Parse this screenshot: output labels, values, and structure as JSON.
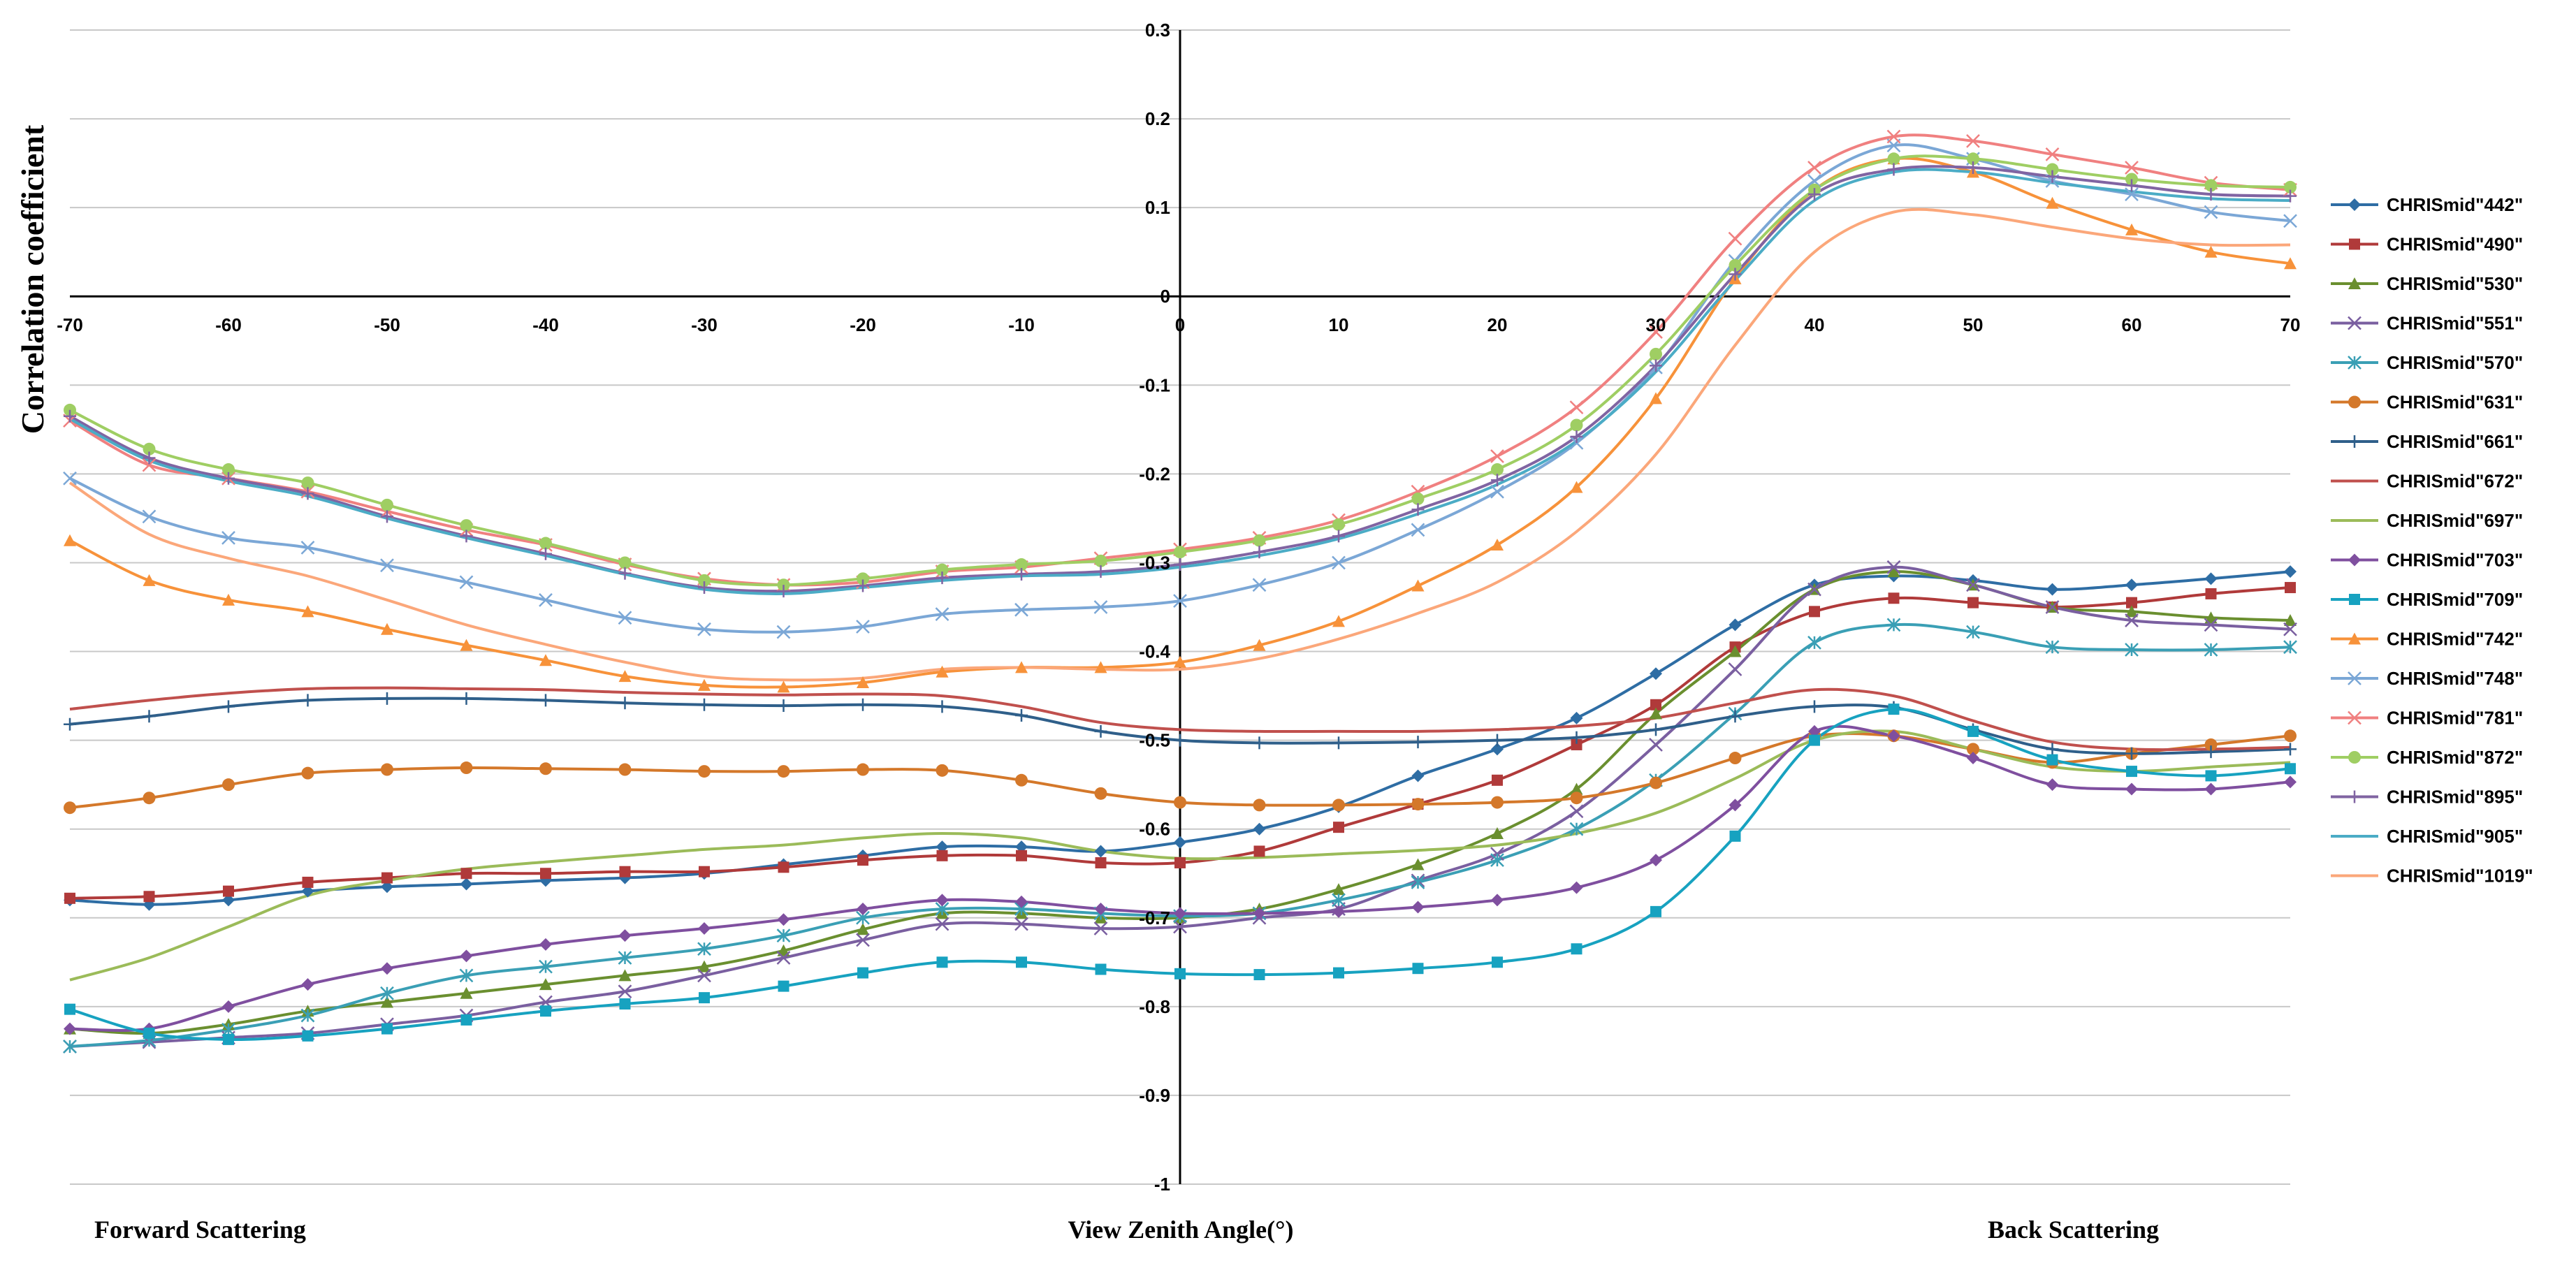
{
  "chart_data": {
    "type": "line",
    "title": "",
    "ylabel": "Correlation coefficient",
    "xlabel": "View Zenith Angle(°)",
    "forward_label": "Forward Scattering",
    "back_label": "Back Scattering",
    "xlim": [
      -70,
      70
    ],
    "ylim": [
      -1,
      0.3
    ],
    "xticks": [
      -70,
      -60,
      -50,
      -40,
      -30,
      -20,
      -10,
      0,
      10,
      20,
      30,
      40,
      50,
      60,
      70
    ],
    "yticks": [
      0.3,
      0.2,
      0.1,
      0,
      -0.1,
      -0.2,
      -0.3,
      -0.4,
      -0.5,
      -0.6,
      -0.7,
      -0.8,
      -0.9,
      -1
    ],
    "ytick_labels": [
      "0.3",
      "0.2",
      "0.1",
      "0",
      "-0.1",
      "-0.2",
      "-0.3",
      "-0.4",
      "-0.5",
      "-0.6",
      "-0.7",
      "-0.8",
      "-0.9",
      "-1"
    ],
    "grid": true,
    "legend_position": "right",
    "x": [
      -70,
      -65,
      -60,
      -55,
      -50,
      -45,
      -40,
      -35,
      -30,
      -25,
      -20,
      -15,
      -10,
      -5,
      0,
      5,
      10,
      15,
      20,
      25,
      30,
      35,
      40,
      45,
      50,
      55,
      60,
      65,
      70
    ],
    "series": [
      {
        "name": "CHRISmid\"442\"",
        "color": "#2e6da4",
        "marker": "diamond",
        "values": [
          -0.68,
          -0.685,
          -0.68,
          -0.67,
          -0.665,
          -0.662,
          -0.658,
          -0.655,
          -0.65,
          -0.64,
          -0.63,
          -0.62,
          -0.62,
          -0.625,
          -0.615,
          -0.6,
          -0.575,
          -0.54,
          -0.51,
          -0.475,
          -0.425,
          -0.37,
          -0.325,
          -0.315,
          -0.32,
          -0.33,
          -0.325,
          -0.318,
          -0.31
        ]
      },
      {
        "name": "CHRISmid\"490\"",
        "color": "#b03a3a",
        "marker": "square",
        "values": [
          -0.678,
          -0.676,
          -0.67,
          -0.66,
          -0.655,
          -0.65,
          -0.65,
          -0.648,
          -0.648,
          -0.643,
          -0.635,
          -0.63,
          -0.63,
          -0.638,
          -0.638,
          -0.625,
          -0.598,
          -0.572,
          -0.545,
          -0.505,
          -0.46,
          -0.395,
          -0.355,
          -0.34,
          -0.345,
          -0.35,
          -0.345,
          -0.335,
          -0.328
        ]
      },
      {
        "name": "CHRISmid\"530\"",
        "color": "#6a8f2f",
        "marker": "triangle",
        "values": [
          -0.825,
          -0.83,
          -0.82,
          -0.805,
          -0.795,
          -0.785,
          -0.775,
          -0.765,
          -0.755,
          -0.737,
          -0.713,
          -0.695,
          -0.695,
          -0.7,
          -0.7,
          -0.69,
          -0.668,
          -0.64,
          -0.605,
          -0.555,
          -0.47,
          -0.4,
          -0.33,
          -0.31,
          -0.325,
          -0.35,
          -0.355,
          -0.362,
          -0.365
        ]
      },
      {
        "name": "CHRISmid\"551\"",
        "color": "#7a5fa0",
        "marker": "x",
        "values": [
          -0.845,
          -0.84,
          -0.835,
          -0.83,
          -0.82,
          -0.81,
          -0.795,
          -0.783,
          -0.765,
          -0.745,
          -0.725,
          -0.707,
          -0.707,
          -0.712,
          -0.71,
          -0.7,
          -0.69,
          -0.658,
          -0.628,
          -0.58,
          -0.505,
          -0.42,
          -0.33,
          -0.305,
          -0.325,
          -0.35,
          -0.365,
          -0.37,
          -0.375
        ]
      },
      {
        "name": "CHRISmid\"570\"",
        "color": "#3a9fb5",
        "marker": "asterisk",
        "values": [
          -0.845,
          -0.838,
          -0.826,
          -0.81,
          -0.785,
          -0.765,
          -0.755,
          -0.745,
          -0.735,
          -0.72,
          -0.7,
          -0.69,
          -0.69,
          -0.695,
          -0.698,
          -0.695,
          -0.68,
          -0.66,
          -0.635,
          -0.6,
          -0.545,
          -0.47,
          -0.39,
          -0.37,
          -0.378,
          -0.395,
          -0.398,
          -0.398,
          -0.395
        ]
      },
      {
        "name": "CHRISmid\"631\"",
        "color": "#d4782a",
        "marker": "circle",
        "values": [
          -0.576,
          -0.565,
          -0.55,
          -0.537,
          -0.533,
          -0.531,
          -0.532,
          -0.533,
          -0.535,
          -0.535,
          -0.533,
          -0.534,
          -0.545,
          -0.56,
          -0.57,
          -0.573,
          -0.573,
          -0.572,
          -0.57,
          -0.565,
          -0.548,
          -0.52,
          -0.495,
          -0.495,
          -0.51,
          -0.525,
          -0.515,
          -0.505,
          -0.495
        ]
      },
      {
        "name": "CHRISmid\"661\"",
        "color": "#2f5f8a",
        "marker": "plus",
        "values": [
          -0.482,
          -0.473,
          -0.462,
          -0.455,
          -0.453,
          -0.453,
          -0.455,
          -0.458,
          -0.46,
          -0.461,
          -0.46,
          -0.462,
          -0.472,
          -0.49,
          -0.5,
          -0.503,
          -0.503,
          -0.502,
          -0.5,
          -0.497,
          -0.488,
          -0.473,
          -0.462,
          -0.463,
          -0.488,
          -0.51,
          -0.515,
          -0.513,
          -0.51
        ]
      },
      {
        "name": "CHRISmid\"672\"",
        "color": "#c0504d",
        "marker": "none",
        "values": [
          -0.465,
          -0.455,
          -0.447,
          -0.442,
          -0.441,
          -0.442,
          -0.443,
          -0.446,
          -0.448,
          -0.449,
          -0.448,
          -0.45,
          -0.462,
          -0.48,
          -0.488,
          -0.49,
          -0.49,
          -0.49,
          -0.488,
          -0.484,
          -0.475,
          -0.458,
          -0.443,
          -0.45,
          -0.478,
          -0.502,
          -0.51,
          -0.51,
          -0.508
        ]
      },
      {
        "name": "CHRISmid\"697\"",
        "color": "#9bbb59",
        "marker": "none",
        "values": [
          -0.77,
          -0.745,
          -0.71,
          -0.675,
          -0.658,
          -0.645,
          -0.637,
          -0.63,
          -0.623,
          -0.618,
          -0.61,
          -0.605,
          -0.61,
          -0.625,
          -0.633,
          -0.632,
          -0.628,
          -0.624,
          -0.618,
          -0.605,
          -0.582,
          -0.543,
          -0.5,
          -0.49,
          -0.51,
          -0.53,
          -0.535,
          -0.53,
          -0.525
        ]
      },
      {
        "name": "CHRISmid\"703\"",
        "color": "#7f4f9f",
        "marker": "diamond",
        "values": [
          -0.825,
          -0.825,
          -0.8,
          -0.775,
          -0.757,
          -0.743,
          -0.73,
          -0.72,
          -0.712,
          -0.702,
          -0.69,
          -0.68,
          -0.682,
          -0.69,
          -0.695,
          -0.695,
          -0.693,
          -0.688,
          -0.68,
          -0.666,
          -0.635,
          -0.573,
          -0.49,
          -0.495,
          -0.52,
          -0.55,
          -0.555,
          -0.555,
          -0.547
        ]
      },
      {
        "name": "CHRISmid\"709\"",
        "color": "#17a2c0",
        "marker": "square",
        "values": [
          -0.803,
          -0.83,
          -0.837,
          -0.833,
          -0.825,
          -0.815,
          -0.805,
          -0.797,
          -0.79,
          -0.777,
          -0.762,
          -0.75,
          -0.75,
          -0.758,
          -0.763,
          -0.764,
          -0.762,
          -0.757,
          -0.75,
          -0.735,
          -0.693,
          -0.608,
          -0.5,
          -0.465,
          -0.49,
          -0.522,
          -0.535,
          -0.54,
          -0.532
        ]
      },
      {
        "name": "CHRISmid\"742\"",
        "color": "#f7923a",
        "marker": "triangle",
        "values": [
          -0.275,
          -0.32,
          -0.342,
          -0.355,
          -0.375,
          -0.393,
          -0.41,
          -0.428,
          -0.438,
          -0.44,
          -0.435,
          -0.423,
          -0.418,
          -0.418,
          -0.412,
          -0.393,
          -0.366,
          -0.326,
          -0.28,
          -0.215,
          -0.115,
          0.02,
          0.12,
          0.155,
          0.14,
          0.105,
          0.075,
          0.05,
          0.037
        ]
      },
      {
        "name": "CHRISmid\"748\"",
        "color": "#7ba7d6",
        "marker": "x",
        "values": [
          -0.205,
          -0.248,
          -0.272,
          -0.283,
          -0.303,
          -0.322,
          -0.342,
          -0.362,
          -0.375,
          -0.378,
          -0.372,
          -0.358,
          -0.353,
          -0.35,
          -0.343,
          -0.325,
          -0.3,
          -0.263,
          -0.22,
          -0.165,
          -0.08,
          0.04,
          0.13,
          0.17,
          0.155,
          0.13,
          0.115,
          0.095,
          0.085
        ]
      },
      {
        "name": "CHRISmid\"781\"",
        "color": "#f08080",
        "marker": "x",
        "values": [
          -0.14,
          -0.19,
          -0.205,
          -0.22,
          -0.242,
          -0.263,
          -0.28,
          -0.302,
          -0.318,
          -0.325,
          -0.322,
          -0.31,
          -0.305,
          -0.295,
          -0.285,
          -0.272,
          -0.252,
          -0.22,
          -0.18,
          -0.125,
          -0.04,
          0.065,
          0.145,
          0.18,
          0.175,
          0.16,
          0.145,
          0.128,
          0.12
        ]
      },
      {
        "name": "CHRISmid\"872\"",
        "color": "#9fce63",
        "marker": "circle",
        "values": [
          -0.128,
          -0.172,
          -0.195,
          -0.21,
          -0.235,
          -0.258,
          -0.278,
          -0.3,
          -0.32,
          -0.325,
          -0.318,
          -0.308,
          -0.302,
          -0.298,
          -0.288,
          -0.275,
          -0.257,
          -0.228,
          -0.195,
          -0.145,
          -0.065,
          0.035,
          0.12,
          0.155,
          0.155,
          0.143,
          0.132,
          0.125,
          0.123
        ]
      },
      {
        "name": "CHRISmid\"895\"",
        "color": "#8064a2",
        "marker": "plus",
        "values": [
          -0.135,
          -0.182,
          -0.205,
          -0.222,
          -0.248,
          -0.27,
          -0.29,
          -0.312,
          -0.328,
          -0.332,
          -0.326,
          -0.317,
          -0.313,
          -0.31,
          -0.302,
          -0.288,
          -0.27,
          -0.24,
          -0.207,
          -0.158,
          -0.078,
          0.025,
          0.115,
          0.143,
          0.145,
          0.135,
          0.125,
          0.115,
          0.113
        ]
      },
      {
        "name": "CHRISmid\"905\"",
        "color": "#4bacc6",
        "marker": "none",
        "values": [
          -0.138,
          -0.185,
          -0.208,
          -0.225,
          -0.25,
          -0.272,
          -0.292,
          -0.313,
          -0.33,
          -0.335,
          -0.328,
          -0.32,
          -0.315,
          -0.313,
          -0.305,
          -0.292,
          -0.273,
          -0.245,
          -0.212,
          -0.163,
          -0.085,
          0.018,
          0.108,
          0.14,
          0.14,
          0.128,
          0.118,
          0.11,
          0.108
        ]
      },
      {
        "name": "CHRISmid\"1019\"",
        "color": "#fba77a",
        "marker": "none",
        "values": [
          -0.21,
          -0.268,
          -0.295,
          -0.315,
          -0.342,
          -0.37,
          -0.392,
          -0.412,
          -0.428,
          -0.432,
          -0.43,
          -0.42,
          -0.418,
          -0.42,
          -0.42,
          -0.408,
          -0.386,
          -0.357,
          -0.322,
          -0.265,
          -0.178,
          -0.055,
          0.05,
          0.095,
          0.092,
          0.078,
          0.065,
          0.058,
          0.058
        ]
      }
    ]
  }
}
